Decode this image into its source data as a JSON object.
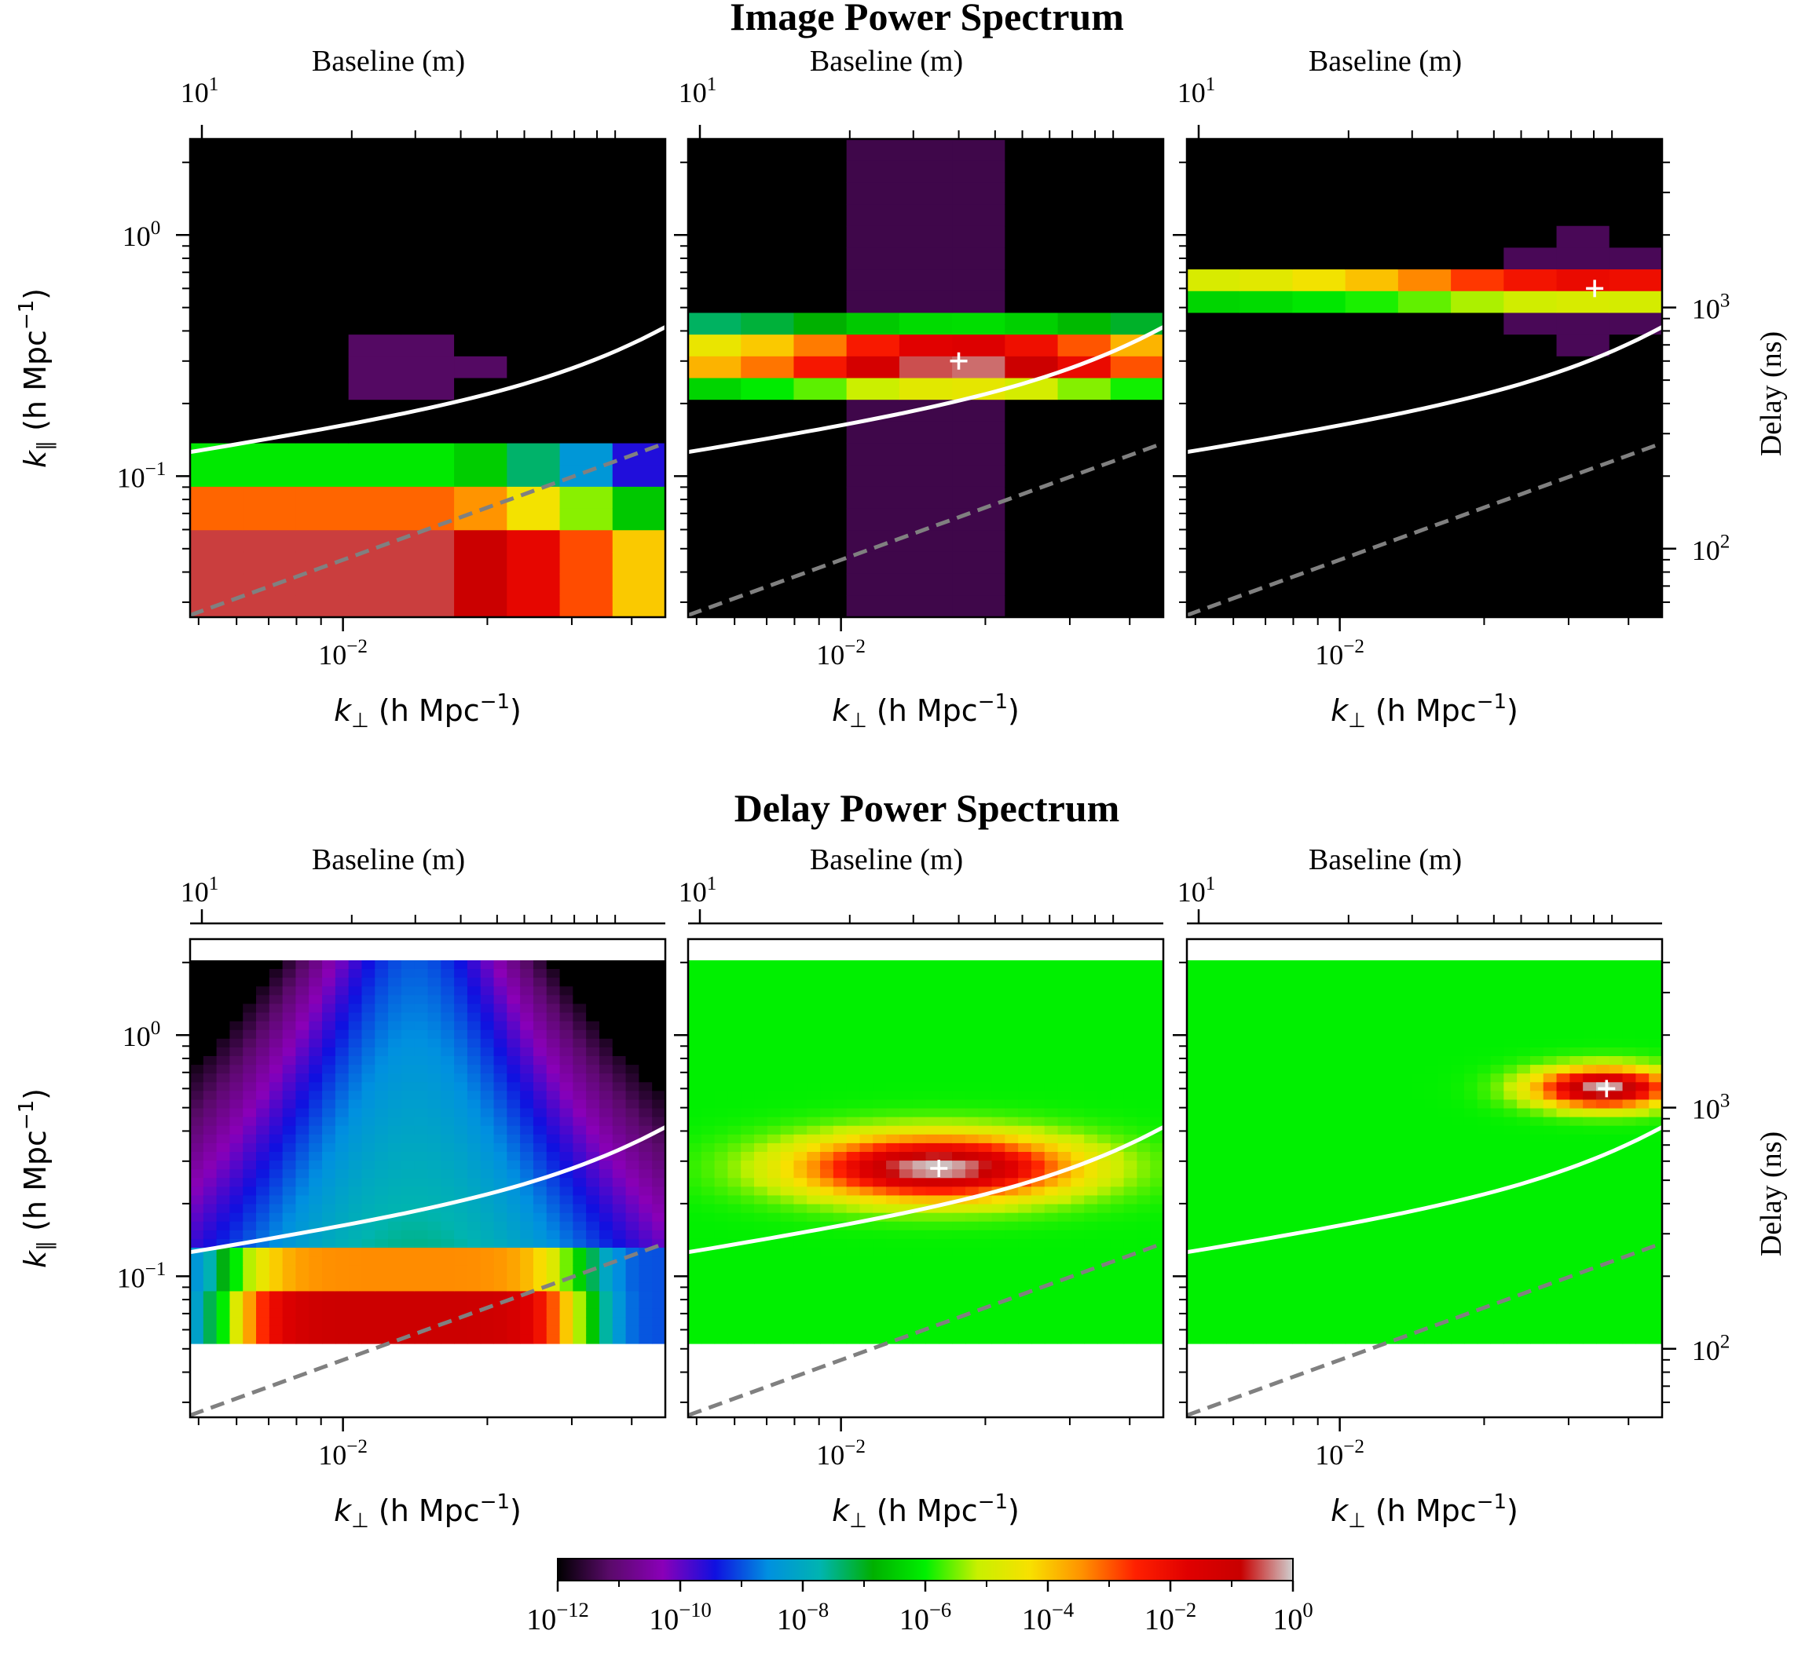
{
  "sections": [
    {
      "title": "Image Power Spectrum"
    },
    {
      "title": "Delay Power Spectrum"
    }
  ],
  "labels": {
    "top_axis": "Baseline (m)",
    "top_tick": "10",
    "top_tick_exp": "1",
    "x_axis_k": "k",
    "x_axis_sub": "⊥",
    "x_axis_unit": " (h Mpc",
    "x_axis_unit_exp": "−1",
    "x_axis_close": ")",
    "y_axis_k": "k",
    "y_axis_sub": "∥",
    "y_axis_unit": " (h Mpc",
    "y_axis_unit_exp": "−1",
    "y_axis_close": ")",
    "right_axis": "Delay (ns)"
  },
  "ticks": {
    "x_tick": {
      "base": "10",
      "exp": "−2"
    },
    "y_ticks": [
      {
        "base": "10",
        "exp": "0"
      },
      {
        "base": "10",
        "exp": "−1"
      }
    ],
    "delay_ticks": [
      {
        "base": "10",
        "exp": "3"
      },
      {
        "base": "10",
        "exp": "2"
      }
    ]
  },
  "colorbar": {
    "scale": "log",
    "range": [
      1e-12,
      1
    ],
    "ticks": [
      {
        "base": "10",
        "exp": "−12"
      },
      {
        "base": "10",
        "exp": "−10"
      },
      {
        "base": "10",
        "exp": "−8"
      },
      {
        "base": "10",
        "exp": "−6"
      },
      {
        "base": "10",
        "exp": "−4"
      },
      {
        "base": "10",
        "exp": "−2"
      },
      {
        "base": "10",
        "exp": "0"
      }
    ],
    "colormap": [
      "#000000",
      "#5a0a6a",
      "#8a00b8",
      "#1010e0",
      "#0090e0",
      "#00b4b0",
      "#00b000",
      "#00f000",
      "#c8f000",
      "#f8e000",
      "#ff9000",
      "#ff2000",
      "#e00000",
      "#c80000",
      "#d0d0d0"
    ]
  },
  "chart_data": [
    {
      "type": "heatmap",
      "section": "Image Power Spectrum",
      "row": 0,
      "col": 0,
      "x_scale": "log",
      "y_scale": "log",
      "xlim": [
        0.0048,
        0.047
      ],
      "ylim": [
        0.026,
        2.5
      ],
      "peak": null,
      "horizon_line": "white solid",
      "wedge_line": "gray dashed"
    },
    {
      "type": "heatmap",
      "section": "Image Power Spectrum",
      "row": 0,
      "col": 1,
      "x_scale": "log",
      "y_scale": "log",
      "xlim": [
        0.0048,
        0.047
      ],
      "ylim": [
        0.026,
        2.5
      ],
      "peak": [
        0.0176,
        0.3
      ],
      "horizon_line": "white solid",
      "wedge_line": "gray dashed"
    },
    {
      "type": "heatmap",
      "section": "Image Power Spectrum",
      "row": 0,
      "col": 2,
      "x_scale": "log",
      "y_scale": "log",
      "xlim": [
        0.0048,
        0.047
      ],
      "ylim": [
        0.026,
        2.5
      ],
      "peak": [
        0.034,
        0.6
      ],
      "horizon_line": "white solid",
      "wedge_line": "gray dashed"
    },
    {
      "type": "heatmap",
      "section": "Delay Power Spectrum",
      "row": 1,
      "col": 0,
      "x_scale": "log",
      "y_scale": "log",
      "xlim": [
        0.0048,
        0.047
      ],
      "ylim": [
        0.026,
        2.5
      ],
      "peak": null,
      "horizon_line": "white solid",
      "wedge_line": "gray dashed"
    },
    {
      "type": "heatmap",
      "section": "Delay Power Spectrum",
      "row": 1,
      "col": 1,
      "x_scale": "log",
      "y_scale": "log",
      "xlim": [
        0.0048,
        0.047
      ],
      "ylim": [
        0.026,
        2.5
      ],
      "peak": [
        0.016,
        0.28
      ],
      "horizon_line": "white solid",
      "wedge_line": "gray dashed"
    },
    {
      "type": "heatmap",
      "section": "Delay Power Spectrum",
      "row": 1,
      "col": 2,
      "x_scale": "log",
      "y_scale": "log",
      "xlim": [
        0.0048,
        0.047
      ],
      "ylim": [
        0.026,
        2.5
      ],
      "peak": [
        0.036,
        0.6
      ],
      "horizon_line": "white solid",
      "wedge_line": "gray dashed"
    }
  ]
}
